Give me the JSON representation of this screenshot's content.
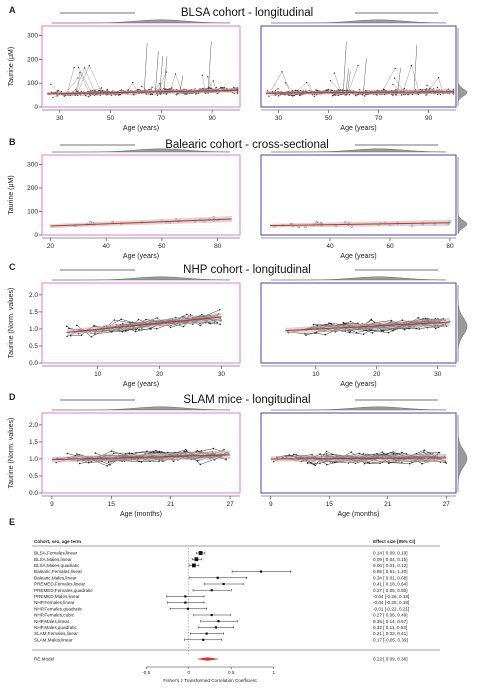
{
  "panels": [
    {
      "letter": "A",
      "title": "BLSA cohort - longitudinal",
      "ylabel": "Taurine (μM)",
      "xlabel": "Age (years)",
      "yticks": [
        "0",
        "100",
        "200",
        "300"
      ],
      "ylim": [
        0,
        340
      ],
      "left": {
        "xlim": [
          23,
          101
        ],
        "xticks": [
          30,
          50,
          70,
          90
        ],
        "color": "#e377e3"
      },
      "right": {
        "xlim": [
          23,
          101
        ],
        "xticks": [
          30,
          50,
          70,
          90
        ],
        "color": "#4a3fb5"
      },
      "style": "dense"
    },
    {
      "letter": "B",
      "title": "Balearic cohort - cross-sectional",
      "ylabel": "Taurine (μM)",
      "xlabel": "Age (years)",
      "yticks": [
        "0",
        "100",
        "200",
        "300"
      ],
      "ylim": [
        0,
        340
      ],
      "left": {
        "xlim": [
          17,
          88
        ],
        "xticks": [
          20,
          40,
          60,
          80
        ],
        "color": "#e377e3"
      },
      "right": {
        "xlim": [
          17,
          82
        ],
        "xticks": [
          40,
          60,
          80
        ],
        "color": "#4a3fb5"
      },
      "style": "points"
    },
    {
      "letter": "C",
      "title": "NHP cohort - longitudinal",
      "ylabel": "Taurine (Norm. values)",
      "xlabel": "Age (years)",
      "yticks": [
        "0.0",
        "0.5",
        "1.0",
        "1.5",
        "2.0"
      ],
      "ylim": [
        0,
        2.35
      ],
      "left": {
        "xlim": [
          1,
          33
        ],
        "xticks": [
          10,
          20,
          30
        ],
        "color": "#e377e3"
      },
      "right": {
        "xlim": [
          1,
          33
        ],
        "xticks": [
          10,
          20,
          30
        ],
        "color": "#4a3fb5"
      },
      "style": "lines"
    },
    {
      "letter": "D",
      "title": "SLAM mice - longitudinal",
      "ylabel": "Taurine (Norm. values)",
      "xlabel": "Age (months)",
      "yticks": [
        "0.0",
        "0.5",
        "1.0",
        "1.5",
        "2.0"
      ],
      "ylim": [
        0,
        2.35
      ],
      "left": {
        "xlim": [
          8,
          28
        ],
        "xticks": [
          9,
          15,
          21,
          27
        ],
        "color": "#e377e3"
      },
      "right": {
        "xlim": [
          8,
          28
        ],
        "xticks": [
          9,
          15,
          21,
          27
        ],
        "color": "#4a3fb5"
      },
      "style": "lines"
    }
  ],
  "forest": {
    "letter": "E",
    "header_left": "Cohort, sex, age term",
    "header_right": "Effect size [95% CI]",
    "xlabel": "Fisher's z Transformed Correlation Coefficient",
    "xticks": [
      "-0.5",
      "0",
      "0.5",
      "1"
    ],
    "xlim": [
      -0.75,
      1.25
    ]
  },
  "chart_data": [
    {
      "type": "line",
      "title": "BLSA cohort - longitudinal",
      "xlabel": "Age (years)",
      "ylabel": "Taurine (μM)",
      "xlim": [
        23,
        101
      ],
      "ylim": [
        0,
        340
      ],
      "series": [
        {
          "name": "",
          "x": [
            25,
            100
          ],
          "y": [
            55,
            70
          ]
        },
        {
          "name": "",
          "x": [
            25,
            100
          ],
          "y": [
            58,
            64
          ]
        }
      ]
    },
    {
      "type": "scatter",
      "title": "Balearic cohort - cross-sectional",
      "xlabel": "Age (years)",
      "ylabel": "Taurine (μM)",
      "series": [
        {
          "name": "",
          "x": [
            20,
            85
          ],
          "y": [
            38,
            68
          ]
        },
        {
          "name": "",
          "x": [
            20,
            80
          ],
          "y": [
            40,
            52
          ]
        }
      ]
    },
    {
      "type": "line",
      "title": "NHP cohort - longitudinal",
      "xlabel": "Age (years)",
      "ylabel": "Taurine (Norm. values)",
      "series": [
        {
          "name": "",
          "x": [
            5,
            30
          ],
          "y": [
            0.9,
            1.35
          ]
        },
        {
          "name": "",
          "x": [
            5,
            32
          ],
          "y": [
            0.95,
            1.2
          ]
        }
      ]
    },
    {
      "type": "line",
      "title": "SLAM mice - longitudinal",
      "xlabel": "Age (months)",
      "ylabel": "Taurine (Norm. values)",
      "series": [
        {
          "name": "",
          "x": [
            9,
            27
          ],
          "y": [
            0.98,
            1.12
          ]
        },
        {
          "name": "",
          "x": [
            9,
            27
          ],
          "y": [
            1.0,
            1.03
          ]
        }
      ]
    },
    {
      "type": "forest",
      "xlabel": "Fisher's z Transformed Correlation Coefficient",
      "xlim": [
        -0.75,
        1.25
      ],
      "rows": [
        {
          "label": "BLSA,Females,linear",
          "est": 0.14,
          "lo": 0.09,
          "hi": 0.19,
          "text": "0.14 [ 0.09, 0.19]"
        },
        {
          "label": "BLSA,Males,linear",
          "est": 0.09,
          "lo": 0.04,
          "hi": 0.15,
          "text": "0.09 [ 0.04, 0.15]"
        },
        {
          "label": "BLSA,Males,quadratic",
          "est": 0.06,
          "lo": 0.01,
          "hi": 0.12,
          "text": "0.06 [ 0.01, 0.12]"
        },
        {
          "label": "Balearic,Females,linear",
          "est": 0.85,
          "lo": 0.51,
          "hi": 1.2,
          "text": "0.85 [ 0.51, 1.20]"
        },
        {
          "label": "Balearic,Males,linear",
          "est": 0.34,
          "lo": 0.01,
          "hi": 0.68,
          "text": "0.34 [ 0.01, 0.68]"
        },
        {
          "label": "PREMED,Females,linear",
          "est": 0.41,
          "lo": 0.18,
          "hi": 0.64,
          "text": "0.41 [ 0.18, 0.64]"
        },
        {
          "label": "PREMED,Females,quadratic",
          "est": 0.27,
          "lo": 0.05,
          "hi": 0.5,
          "text": "0.27 [ 0.05, 0.50]"
        },
        {
          "label": "PREMED,Males,linear",
          "est": -0.04,
          "lo": -0.26,
          "hi": 0.18,
          "text": "-0.04 [-0.26, 0.18]"
        },
        {
          "label": "NHP,Females,linear",
          "est": -0.04,
          "lo": -0.25,
          "hi": 0.18,
          "text": "-0.04 [-0.25, 0.18]"
        },
        {
          "label": "NHP,Females,quadratic",
          "est": -0.01,
          "lo": -0.22,
          "hi": 0.21,
          "text": "-0.01 [-0.22, 0.21]"
        },
        {
          "label": "NHP,Females,cubic",
          "est": 0.27,
          "lo": 0.06,
          "hi": 0.49,
          "text": "0.27 [ 0.06, 0.49]"
        },
        {
          "label": "NHP,Males,linear",
          "est": 0.35,
          "lo": 0.14,
          "hi": 0.57,
          "text": "0.35 [ 0.14, 0.57]"
        },
        {
          "label": "NHP,Males,quadratic",
          "est": 0.32,
          "lo": 0.11,
          "hi": 0.53,
          "text": "0.32 [ 0.11, 0.53]"
        },
        {
          "label": "SLAM,Females,linear",
          "est": 0.21,
          "lo": 0.02,
          "hi": 0.41,
          "text": "0.21 [ 0.02, 0.41]"
        },
        {
          "label": "SLAM,Males,linear",
          "est": 0.17,
          "lo": -0.05,
          "hi": 0.39,
          "text": "0.17 [-0.05, 0.39]"
        }
      ],
      "summary": {
        "label": "RE Model",
        "est": 0.22,
        "lo": 0.09,
        "hi": 0.36,
        "text": "0.22 [ 0.09, 0.36]"
      }
    }
  ]
}
